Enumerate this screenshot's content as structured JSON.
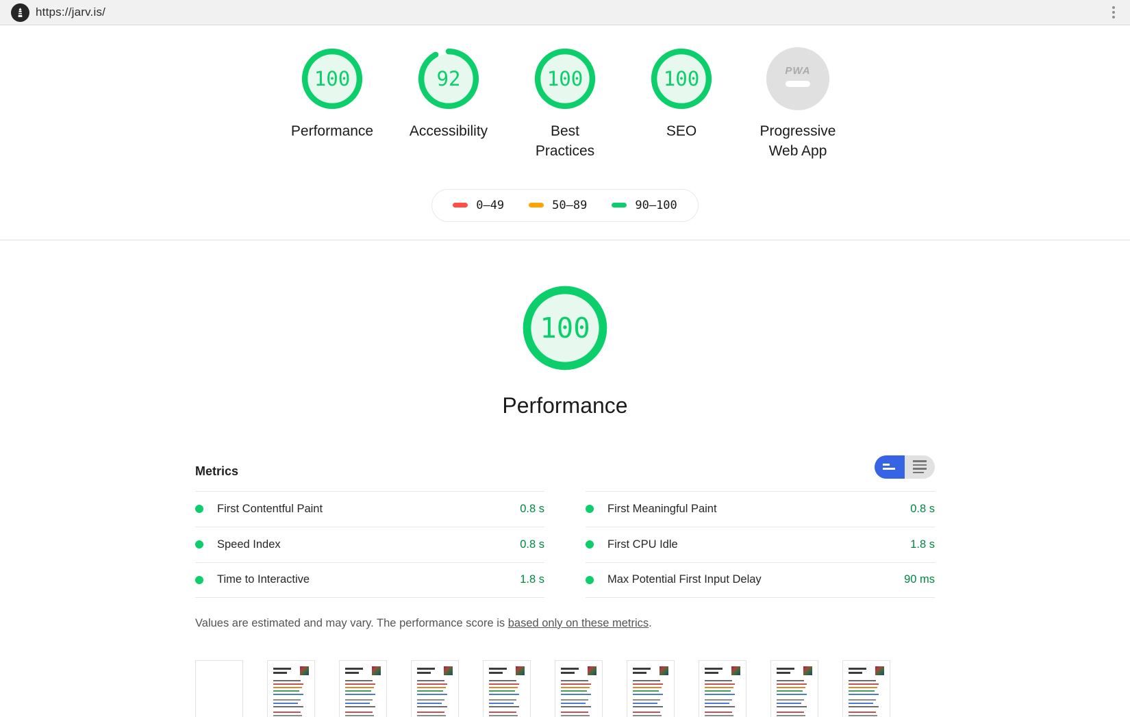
{
  "browser": {
    "url": "https://jarv.is/"
  },
  "scores": {
    "gauges": [
      {
        "label": "Performance",
        "score": "100",
        "value": 100
      },
      {
        "label": "Accessibility",
        "score": "92",
        "value": 92
      },
      {
        "label": "Best Practices",
        "score": "100",
        "value": 100
      },
      {
        "label": "SEO",
        "score": "100",
        "value": 100
      }
    ],
    "pwa": {
      "label": "Progressive Web App",
      "badge_text": "PWA"
    }
  },
  "legend": {
    "items": [
      {
        "range": "0–49",
        "color": "#ff4e42"
      },
      {
        "range": "50–89",
        "color": "#ffa400"
      },
      {
        "range": "90–100",
        "color": "#0cce6b"
      }
    ]
  },
  "category": {
    "title": "Performance",
    "score": "100",
    "value": 100
  },
  "metrics": {
    "heading": "Metrics",
    "columns": [
      [
        {
          "name": "First Contentful Paint",
          "value": "0.8 s"
        },
        {
          "name": "Speed Index",
          "value": "0.8 s"
        },
        {
          "name": "Time to Interactive",
          "value": "1.8 s"
        }
      ],
      [
        {
          "name": "First Meaningful Paint",
          "value": "0.8 s"
        },
        {
          "name": "First CPU Idle",
          "value": "1.8 s"
        },
        {
          "name": "Max Potential First Input Delay",
          "value": "90 ms"
        }
      ]
    ],
    "disclaimer_prefix": "Values are estimated and may vary. The performance score is ",
    "disclaimer_link": "based only on these metrics",
    "disclaimer_suffix": "."
  },
  "filmstrip": {
    "frames": [
      "blank",
      "page",
      "page",
      "page",
      "page",
      "page",
      "page",
      "page",
      "page",
      "page"
    ]
  },
  "colors": {
    "pass_ring": "#0cce6b",
    "pass_fill": "#e7f8ef",
    "pass_text": "#018642",
    "average": "#ffa400",
    "fail": "#ff4e42",
    "toggle_blue": "#3764e4"
  }
}
